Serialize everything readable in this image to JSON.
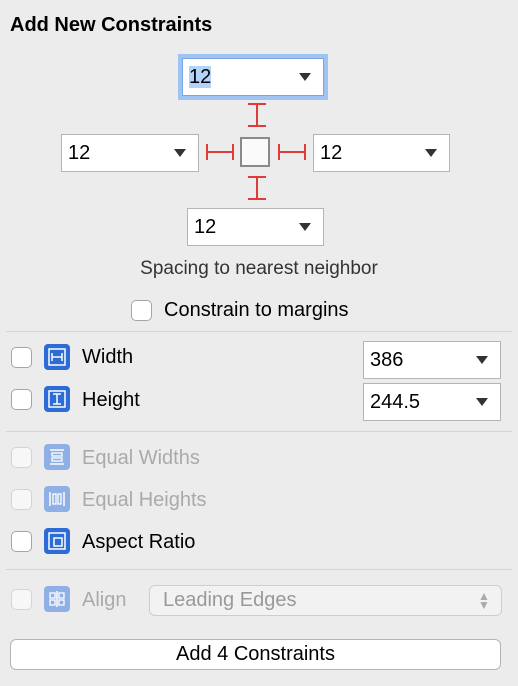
{
  "title": "Add New Constraints",
  "spacing": {
    "top": "12",
    "left": "12",
    "right": "12",
    "bottom": "12",
    "caption": "Spacing to nearest neighbor"
  },
  "constrain_margins": {
    "label": "Constrain to margins",
    "checked": false
  },
  "size": {
    "width_label": "Width",
    "width_value": "386",
    "height_label": "Height",
    "height_value": "244.5"
  },
  "equal": {
    "widths_label": "Equal Widths",
    "heights_label": "Equal Heights",
    "aspect_label": "Aspect Ratio"
  },
  "align": {
    "label": "Align",
    "value": "Leading Edges"
  },
  "add_button": "Add 4 Constraints",
  "colors": {
    "strut": "#e03b3b",
    "icon_blue": "#2d6bd6",
    "focus_ring": "#9fc3f2"
  }
}
